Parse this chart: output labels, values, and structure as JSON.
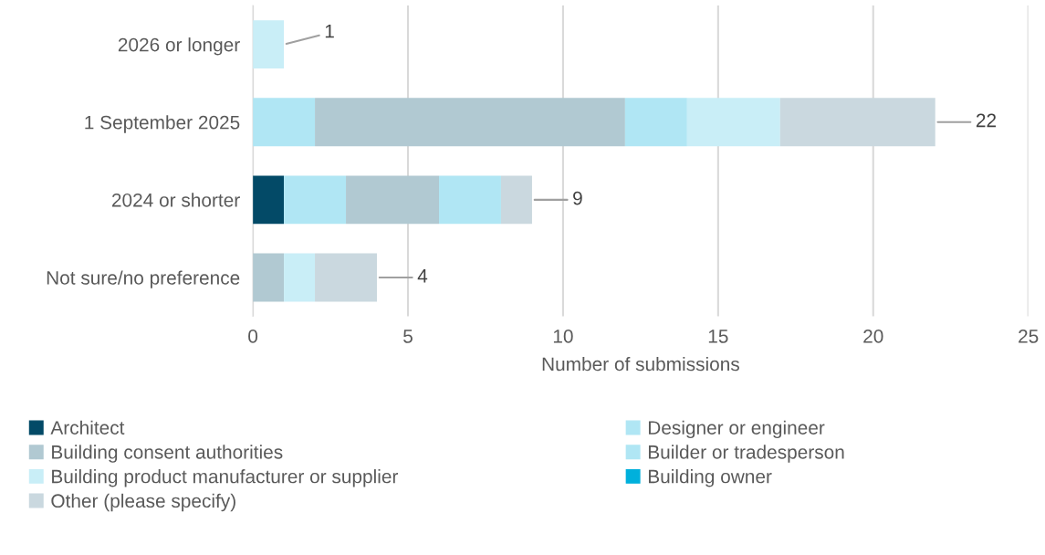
{
  "chart_data": {
    "type": "bar",
    "orientation": "horizontal",
    "stacked": true,
    "categories": [
      "2026 or longer",
      "1 September 2025",
      "2024 or shorter",
      "Not sure/no preference"
    ],
    "xlabel": "Number of submissions",
    "xlim": [
      0,
      25
    ],
    "xticks": [
      0,
      5,
      10,
      15,
      20,
      25
    ],
    "grid": "x",
    "legend": "bottom",
    "series": [
      {
        "name": "Architect",
        "color": "#034a67",
        "values": [
          0,
          0,
          1,
          0
        ]
      },
      {
        "name": "Designer or engineer",
        "color": "#b0e6f4",
        "values": [
          0,
          2,
          2,
          0
        ]
      },
      {
        "name": "Building consent authorities",
        "color": "#b1c9d2",
        "values": [
          0,
          10,
          3,
          1
        ]
      },
      {
        "name": "Builder or tradesperson",
        "color": "#b0e6f4",
        "values": [
          0,
          2,
          2,
          0
        ]
      },
      {
        "name": "Building product manufacturer or supplier",
        "color": "#c9eef7",
        "values": [
          1,
          3,
          0,
          1
        ]
      },
      {
        "name": "Building owner",
        "color": "#00b0dc",
        "values": [
          0,
          0,
          0,
          0
        ]
      },
      {
        "name": "Other (please specify)",
        "color": "#cad8df",
        "values": [
          0,
          5,
          1,
          2
        ]
      }
    ],
    "totals": [
      "1",
      "22",
      "9",
      "4"
    ]
  }
}
